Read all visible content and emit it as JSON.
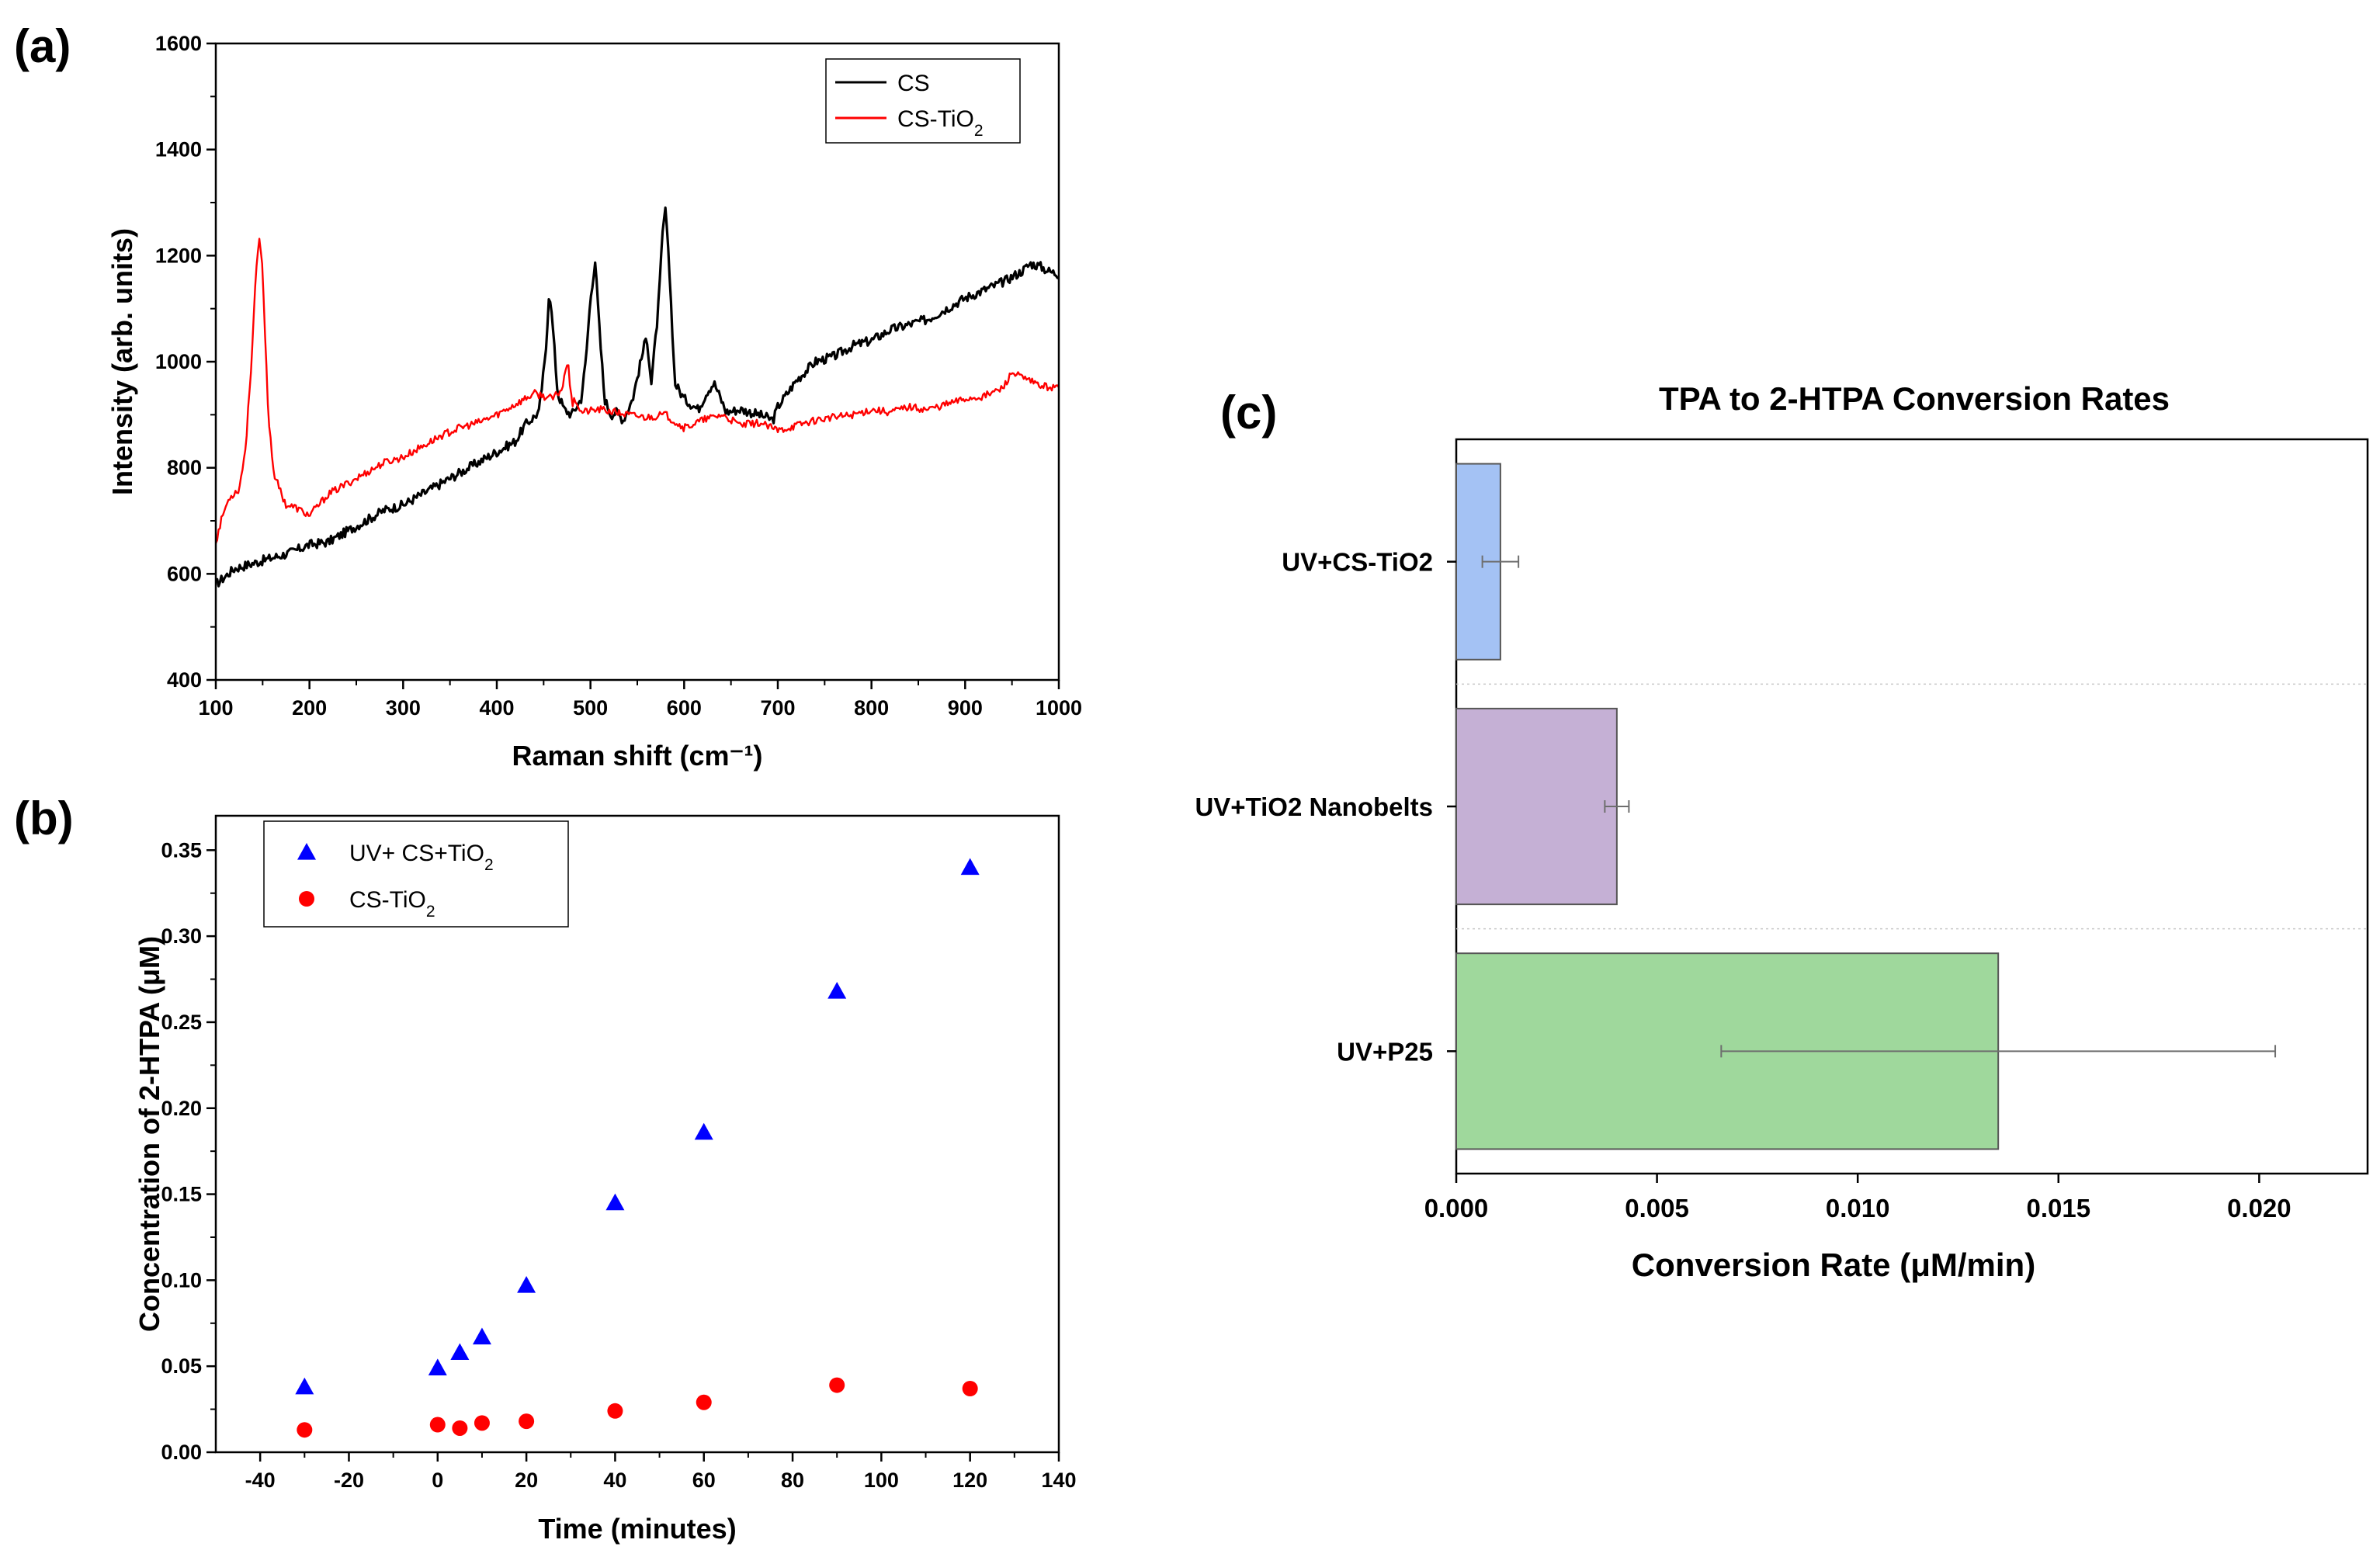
{
  "chart_data": [
    {
      "id": "a",
      "panel_label": "(a)",
      "type": "line",
      "xlabel": "Raman shift (cm⁻¹)",
      "ylabel": "Intensity (arb. units)",
      "xlim": [
        100,
        1000
      ],
      "ylim": [
        400,
        1600
      ],
      "xticks": [
        100,
        200,
        300,
        400,
        500,
        600,
        700,
        800,
        900,
        1000
      ],
      "yticks": [
        400,
        600,
        800,
        1000,
        1200,
        1400,
        1600
      ],
      "legend": {
        "position": "top-right",
        "entries": [
          {
            "base": "CS",
            "sub": "",
            "color": "#000000"
          },
          {
            "base": "CS-TiO",
            "sub": "2",
            "color": "#ff0000"
          }
        ]
      },
      "series": [
        {
          "name": "CS",
          "color": "#000000",
          "x": [
            100,
            120,
            140,
            160,
            180,
            200,
            220,
            240,
            260,
            280,
            300,
            320,
            340,
            360,
            380,
            400,
            420,
            430,
            445,
            452,
            456,
            460,
            465,
            472,
            480,
            490,
            495,
            500,
            505,
            510,
            515,
            522,
            528,
            535,
            545,
            555,
            560,
            565,
            572,
            577,
            580,
            585,
            590,
            600,
            615,
            625,
            632,
            645,
            660,
            680,
            695,
            700,
            720,
            740,
            760,
            780,
            800,
            820,
            840,
            860,
            880,
            900,
            920,
            940,
            960,
            970,
            980,
            990,
            1000
          ],
          "y": [
            580,
            610,
            620,
            630,
            640,
            655,
            660,
            680,
            700,
            720,
            730,
            750,
            770,
            790,
            810,
            830,
            850,
            880,
            905,
            1010,
            1140,
            1060,
            940,
            910,
            900,
            930,
            1000,
            1120,
            1190,
            1050,
            930,
            900,
            905,
            890,
            930,
            1010,
            1050,
            960,
            1090,
            1240,
            1290,
            1150,
            960,
            930,
            910,
            945,
            960,
            905,
            910,
            900,
            890,
            915,
            965,
            1000,
            1010,
            1030,
            1040,
            1060,
            1070,
            1080,
            1100,
            1120,
            1135,
            1150,
            1170,
            1185,
            1180,
            1170,
            1165
          ],
          "noise": 9
        },
        {
          "name": "CS-TiO2",
          "color": "#ff0000",
          "x": [
            100,
            108,
            115,
            125,
            132,
            138,
            142,
            146,
            149,
            152,
            156,
            162,
            168,
            175,
            185,
            200,
            220,
            250,
            280,
            300,
            320,
            340,
            360,
            380,
            400,
            420,
            440,
            460,
            470,
            476,
            478,
            481,
            484,
            490,
            510,
            540,
            560,
            580,
            600,
            620,
            640,
            660,
            680,
            700,
            720,
            740,
            760,
            780,
            800,
            820,
            840,
            860,
            880,
            900,
            920,
            940,
            950,
            960,
            980,
            1000
          ],
          "y": [
            660,
            715,
            745,
            760,
            840,
            1000,
            1140,
            1230,
            1200,
            1080,
            900,
            790,
            760,
            730,
            725,
            710,
            750,
            780,
            810,
            820,
            840,
            860,
            875,
            885,
            900,
            920,
            940,
            930,
            950,
            1010,
            960,
            920,
            930,
            905,
            910,
            900,
            895,
            900,
            875,
            890,
            900,
            880,
            885,
            870,
            880,
            890,
            895,
            900,
            910,
            905,
            915,
            910,
            920,
            930,
            935,
            950,
            980,
            970,
            955,
            950
          ],
          "noise": 7
        }
      ]
    },
    {
      "id": "b",
      "panel_label": "(b)",
      "type": "scatter",
      "xlabel": "Time (minutes)",
      "ylabel": "Concentration of 2-HTPA (μM)",
      "xlim": [
        -50,
        140
      ],
      "ylim": [
        0.0,
        0.37
      ],
      "xticks": [
        -40,
        -20,
        0,
        20,
        40,
        60,
        80,
        100,
        120,
        140
      ],
      "yticks": [
        0.0,
        0.05,
        0.1,
        0.15,
        0.2,
        0.25,
        0.3,
        0.35
      ],
      "ytick_labels": [
        "0.00",
        "0.05",
        "0.10",
        "0.15",
        "0.20",
        "0.25",
        "0.30",
        "0.35"
      ],
      "legend": {
        "position": "top-left",
        "entries": [
          {
            "base": "UV+ CS+TiO",
            "sub": "2",
            "color": "#0000ff",
            "marker": "triangle"
          },
          {
            "base": "CS-TiO",
            "sub": "2",
            "color": "#ff0000",
            "marker": "circle"
          }
        ]
      },
      "series": [
        {
          "name": "UV+ CS+TiO2",
          "color": "#0000ff",
          "marker": "triangle",
          "x": [
            -30,
            0,
            5,
            10,
            20,
            40,
            60,
            90,
            120
          ],
          "y": [
            0.038,
            0.049,
            0.058,
            0.067,
            0.097,
            0.145,
            0.186,
            0.268,
            0.34
          ]
        },
        {
          "name": "CS-TiO2",
          "color": "#ff0000",
          "marker": "circle",
          "x": [
            -30,
            0,
            5,
            10,
            20,
            40,
            60,
            90,
            120
          ],
          "y": [
            0.013,
            0.016,
            0.014,
            0.017,
            0.018,
            0.024,
            0.029,
            0.039,
            0.037
          ]
        }
      ]
    },
    {
      "id": "c",
      "panel_label": "(c)",
      "type": "bar",
      "orientation": "horizontal",
      "title": "TPA to 2-HTPA Conversion Rates",
      "xlabel": "Conversion Rate (μM/min)",
      "ylabel": "",
      "xlim": [
        0.0,
        0.0227
      ],
      "xticks": [
        0.0,
        0.005,
        0.01,
        0.015,
        0.02
      ],
      "xtick_labels": [
        "0.000",
        "0.005",
        "0.010",
        "0.015",
        "0.020"
      ],
      "categories": [
        "UV+CS-TiO2",
        "UV+TiO2 Nanobelts",
        "UV+P25"
      ],
      "values": [
        0.0011,
        0.004,
        0.0135
      ],
      "errors": [
        0.00045,
        0.0003,
        0.0069
      ],
      "colors": [
        "#a4c2f4",
        "#c5b0d5",
        "#9fd89c"
      ]
    }
  ]
}
